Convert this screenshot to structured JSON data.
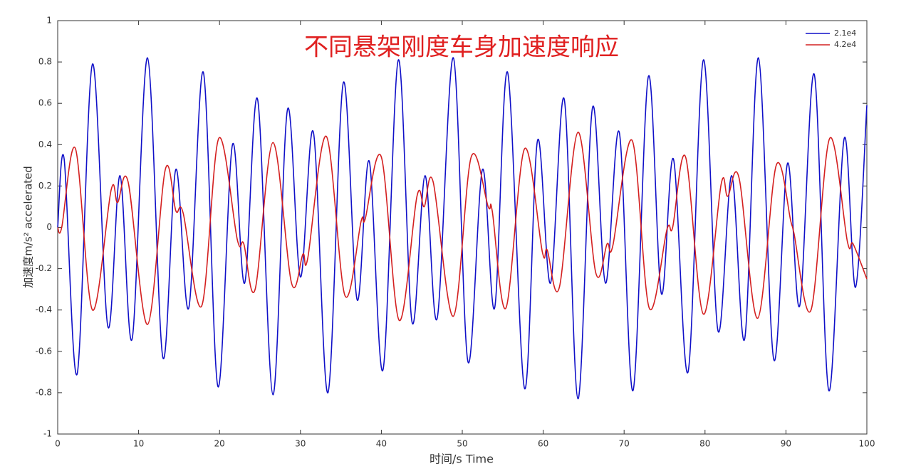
{
  "chart_data": {
    "type": "line",
    "title": "不同悬架刚度车身加速度响应",
    "x_label": "时间/s Time",
    "y_label": "加速度m/s² accelerated",
    "xlim": [
      0,
      100
    ],
    "xticks": [
      0,
      10,
      20,
      30,
      40,
      50,
      60,
      70,
      80,
      90,
      100
    ],
    "ylim": [
      -1,
      1
    ],
    "yticks": [
      -1,
      -0.8,
      -0.6,
      -0.4,
      -0.2,
      0,
      0.2,
      0.4,
      0.6,
      0.8,
      1
    ],
    "legend": "upper right",
    "series": [
      {
        "name": "2.1e4",
        "color": "#1010c8",
        "x": [
          0,
          0.8,
          2.4,
          4.3,
          6.2,
          7.7,
          9.2,
          11.1,
          13.0,
          14.6,
          16.2,
          18.0,
          19.8,
          21.6,
          23.1,
          24.7,
          26.6,
          28.4,
          30.0,
          31.6,
          33.4,
          35.3,
          37.0,
          38.5,
          40.2,
          42.1,
          43.8,
          45.4,
          46.9,
          48.9,
          50.7,
          52.5,
          54.0,
          55.6,
          57.7,
          59.3,
          60.9,
          62.6,
          64.3,
          66.1,
          67.7,
          69.4,
          71.1,
          73.0,
          74.6,
          76.1,
          77.9,
          79.8,
          81.6,
          83.3,
          84.9,
          86.6,
          88.5,
          90.2,
          91.7,
          93.5,
          95.3,
          97.2,
          98.6,
          100
        ],
        "values": [
          0,
          0.33,
          -0.71,
          0.79,
          -0.48,
          0.25,
          -0.54,
          0.82,
          -0.63,
          0.28,
          -0.39,
          0.75,
          -0.77,
          0.4,
          -0.27,
          0.62,
          -0.81,
          0.57,
          -0.24,
          0.46,
          -0.8,
          0.7,
          -0.35,
          0.32,
          -0.69,
          0.81,
          -0.46,
          0.25,
          -0.44,
          0.82,
          -0.65,
          0.28,
          -0.39,
          0.75,
          -0.78,
          0.42,
          -0.27,
          0.62,
          -0.83,
          0.58,
          -0.27,
          0.46,
          -0.79,
          0.73,
          -0.32,
          0.33,
          -0.7,
          0.81,
          -0.5,
          0.25,
          -0.54,
          0.82,
          -0.64,
          0.31,
          -0.38,
          0.74,
          -0.79,
          0.43,
          -0.29,
          0.59
        ]
      },
      {
        "name": "4.2e4",
        "color": "#d42020",
        "x": [
          0,
          0.5,
          2.2,
          4.3,
          6.6,
          7.4,
          8.7,
          11.1,
          13.3,
          14.6,
          15.5,
          17.8,
          19.9,
          22.2,
          23.0,
          24.4,
          26.6,
          28.9,
          30.3,
          30.9,
          33.2,
          35.5,
          37.5,
          38.0,
          40.0,
          42.2,
          44.4,
          45.3,
          46.4,
          48.9,
          51.1,
          53.2,
          53.7,
          55.4,
          57.7,
          59.9,
          60.5,
          62.0,
          64.3,
          66.5,
          67.9,
          68.6,
          71.0,
          73.1,
          75.3,
          76.0,
          77.6,
          79.8,
          82.0,
          82.8,
          84.2,
          86.5,
          88.8,
          90.6,
          91.0,
          93.1,
          95.4,
          97.6,
          98.3,
          100
        ],
        "values": [
          0,
          0,
          0.38,
          -0.4,
          0.18,
          0.12,
          0.22,
          -0.47,
          0.28,
          0.08,
          0.07,
          -0.38,
          0.43,
          -0.06,
          -0.08,
          -0.3,
          0.41,
          -0.27,
          -0.13,
          -0.15,
          0.44,
          -0.33,
          0.03,
          0.04,
          0.34,
          -0.45,
          0.15,
          0.1,
          0.22,
          -0.43,
          0.34,
          0.1,
          0.08,
          -0.39,
          0.38,
          -0.12,
          -0.11,
          -0.29,
          0.46,
          -0.22,
          -0.08,
          -0.09,
          0.42,
          -0.39,
          -0.01,
          0.0,
          0.34,
          -0.42,
          0.21,
          0.15,
          0.24,
          -0.44,
          0.3,
          0.03,
          -0.03,
          -0.4,
          0.43,
          -0.07,
          -0.08,
          -0.25
        ]
      }
    ]
  }
}
